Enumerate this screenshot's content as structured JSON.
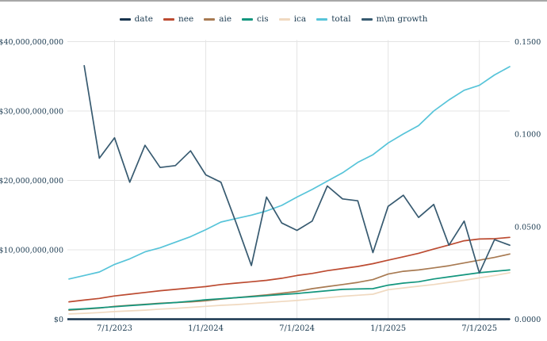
{
  "legend": {
    "items": [
      {
        "label": "date",
        "color": "#17344e"
      },
      {
        "label": "nee",
        "color": "#bc4b31"
      },
      {
        "label": "aie",
        "color": "#a87a52"
      },
      {
        "label": "cis",
        "color": "#13967e"
      },
      {
        "label": "ica",
        "color": "#f0d9c0"
      },
      {
        "label": "total",
        "color": "#57c4d9"
      },
      {
        "label": "m\\m growth",
        "color": "#375a70"
      }
    ]
  },
  "chart_data": {
    "type": "line",
    "title": "",
    "xlabel": "",
    "ylabel": "",
    "grid": true,
    "legend_position": "top",
    "x": [
      "4/1/2023",
      "5/1/2023",
      "6/1/2023",
      "7/1/2023",
      "8/1/2023",
      "9/1/2023",
      "10/1/2023",
      "11/1/2023",
      "12/1/2023",
      "1/1/2024",
      "2/1/2024",
      "3/1/2024",
      "4/1/2024",
      "5/1/2024",
      "6/1/2024",
      "7/1/2024",
      "8/1/2024",
      "9/1/2024",
      "10/1/2024",
      "11/1/2024",
      "12/1/2024",
      "1/1/2025",
      "2/1/2025",
      "3/1/2025",
      "4/1/2025",
      "5/1/2025",
      "6/1/2025",
      "7/1/2025",
      "8/1/2025",
      "9/1/2025"
    ],
    "x_ticks": [
      "7/1/2023",
      "1/1/2024",
      "7/1/2024",
      "1/1/2025",
      "7/1/2025"
    ],
    "left_axis": {
      "range": [
        0,
        40000000000
      ],
      "tick_values": [
        0,
        10000000000,
        20000000000,
        30000000000,
        40000000000
      ],
      "tick_labels": [
        "$0",
        "$10,000,000,000",
        "$20,000,000,000",
        "$30,000,000,000",
        "$40,000,000,000"
      ]
    },
    "right_axis": {
      "range": [
        0,
        0.15
      ],
      "tick_values": [
        0,
        0.05,
        0.1,
        0.15
      ],
      "tick_labels": [
        "0.0000",
        "0.0500",
        "0.1000",
        "0.1500"
      ]
    },
    "series": [
      {
        "name": "date",
        "axis": "left",
        "color": "#17344e",
        "values": [
          0,
          0,
          0,
          0,
          0,
          0,
          0,
          0,
          0,
          0,
          0,
          0,
          0,
          0,
          0,
          0,
          0,
          0,
          0,
          0,
          0,
          0,
          0,
          0,
          0,
          0,
          0,
          0,
          0,
          0
        ]
      },
      {
        "name": "nee",
        "axis": "left",
        "color": "#bc4b31",
        "values": [
          2500000000,
          2750000000,
          3000000000,
          3350000000,
          3600000000,
          3850000000,
          4100000000,
          4300000000,
          4500000000,
          4700000000,
          5000000000,
          5200000000,
          5400000000,
          5600000000,
          5900000000,
          6300000000,
          6600000000,
          7000000000,
          7300000000,
          7600000000,
          8000000000,
          8500000000,
          9000000000,
          9500000000,
          10100000000,
          10700000000,
          11300000000,
          11550000000,
          11600000000,
          11800000000
        ]
      },
      {
        "name": "aie",
        "axis": "left",
        "color": "#a87a52",
        "values": [
          1300000000,
          1450000000,
          1600000000,
          1850000000,
          2000000000,
          2150000000,
          2300000000,
          2400000000,
          2500000000,
          2650000000,
          2900000000,
          3100000000,
          3300000000,
          3500000000,
          3750000000,
          4000000000,
          4400000000,
          4700000000,
          5000000000,
          5300000000,
          5700000000,
          6500000000,
          6900000000,
          7100000000,
          7400000000,
          7700000000,
          8100000000,
          8500000000,
          8900000000,
          9400000000
        ]
      },
      {
        "name": "cis",
        "axis": "left",
        "color": "#13967e",
        "values": [
          1400000000,
          1500000000,
          1650000000,
          1800000000,
          1950000000,
          2100000000,
          2250000000,
          2400000000,
          2600000000,
          2800000000,
          2950000000,
          3100000000,
          3250000000,
          3400000000,
          3550000000,
          3700000000,
          3900000000,
          4100000000,
          4300000000,
          4350000000,
          4400000000,
          4900000000,
          5200000000,
          5400000000,
          5800000000,
          6100000000,
          6400000000,
          6700000000,
          6900000000,
          7100000000
        ]
      },
      {
        "name": "ica",
        "axis": "left",
        "color": "#f0d9c0",
        "values": [
          750000000,
          850000000,
          950000000,
          1100000000,
          1200000000,
          1300000000,
          1450000000,
          1550000000,
          1700000000,
          1850000000,
          2000000000,
          2100000000,
          2250000000,
          2400000000,
          2550000000,
          2700000000,
          2900000000,
          3100000000,
          3300000000,
          3450000000,
          3600000000,
          4250000000,
          4500000000,
          4750000000,
          5000000000,
          5300000000,
          5600000000,
          5950000000,
          6300000000,
          6700000000
        ]
      },
      {
        "name": "total",
        "axis": "left",
        "color": "#57c4d9",
        "values": [
          5800000000,
          6300000000,
          6800000000,
          7900000000,
          8700000000,
          9700000000,
          10300000000,
          11100000000,
          11900000000,
          12900000000,
          14000000000,
          14500000000,
          15000000000,
          15600000000,
          16400000000,
          17600000000,
          18700000000,
          19900000000,
          21100000000,
          22600000000,
          23700000000,
          25400000000,
          26700000000,
          27900000000,
          30000000000,
          31600000000,
          33000000000,
          33700000000,
          35200000000,
          36400000000
        ]
      },
      {
        "name": "m\\m growth",
        "axis": "right",
        "color": "#375a70",
        "values": [
          null,
          0.137,
          0.087,
          0.098,
          0.074,
          0.094,
          0.082,
          0.083,
          0.091,
          0.078,
          0.074,
          0.052,
          0.029,
          0.066,
          0.052,
          0.048,
          0.053,
          0.072,
          0.065,
          0.064,
          0.036,
          0.061,
          0.067,
          0.055,
          0.062,
          0.04,
          0.053,
          0.025,
          0.043,
          0.04
        ]
      }
    ]
  }
}
